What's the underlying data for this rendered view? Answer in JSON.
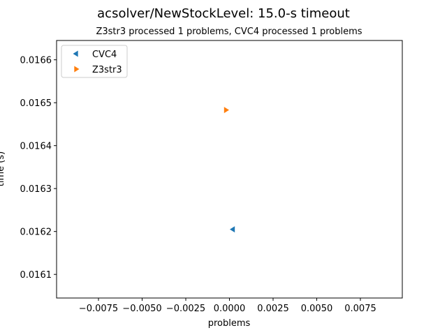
{
  "chart_data": {
    "type": "scatter",
    "title": "acsolver/NewStockLevel: 15.0-s timeout",
    "subtitle": "Z3str3 processed 1 problems, CVC4 processed 1 problems",
    "xlabel": "problems",
    "ylabel": "time (s)",
    "xlim": [
      -0.0099,
      0.0099
    ],
    "ylim": [
      0.016045,
      0.016645
    ],
    "xticks": [
      -0.0075,
      -0.005,
      -0.0025,
      0.0,
      0.0025,
      0.005,
      0.0075
    ],
    "xtick_labels": [
      "−0.0075",
      "−0.0050",
      "−0.0025",
      "0.0000",
      "0.0025",
      "0.0050",
      "0.0075"
    ],
    "yticks": [
      0.0161,
      0.0162,
      0.0163,
      0.0164,
      0.0165,
      0.0166
    ],
    "ytick_labels": [
      "0.0161",
      "0.0162",
      "0.0163",
      "0.0164",
      "0.0165",
      "0.0166"
    ],
    "grid": false,
    "legend_position": "top-left",
    "series": [
      {
        "name": "CVC4",
        "marker": "triangle-left",
        "color": "#1f77b4",
        "points": [
          {
            "x": 0.0002,
            "y": 0.016205
          }
        ]
      },
      {
        "name": "Z3str3",
        "marker": "triangle-right",
        "color": "#ff7f0e",
        "points": [
          {
            "x": -0.0002,
            "y": 0.016483
          }
        ]
      }
    ]
  }
}
